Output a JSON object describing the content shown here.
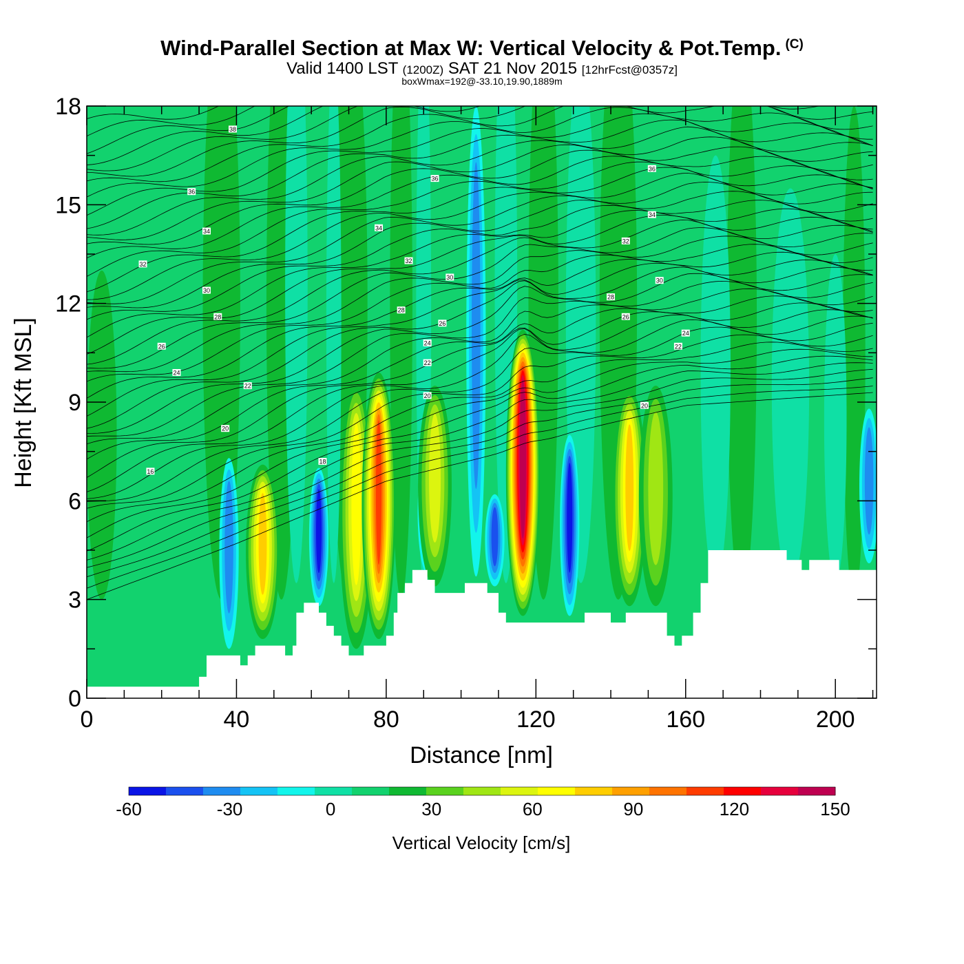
{
  "header": {
    "title_main": "Wind-Parallel Section at Max W: Vertical Velocity & Pot.Temp.",
    "title_mark": "(C)",
    "subtitle_a": "Valid 1400 LST",
    "subtitle_b": "(1200Z)",
    "subtitle_c": "SAT 21 Nov 2015",
    "subtitle_d": "[12hrFcst@0357z]",
    "subtitle_line3": "boxWmax=192@-33.10,19.90,1889m"
  },
  "chart_data": {
    "type": "heatmap",
    "xlabel": "Distance [nm]",
    "ylabel": "Height [Kft MSL]",
    "xlim": [
      0,
      211
    ],
    "ylim": [
      0,
      18
    ],
    "x_ticks": [
      0,
      40,
      80,
      120,
      160,
      200
    ],
    "y_ticks": [
      0,
      3,
      6,
      9,
      12,
      15,
      18
    ],
    "colorbar": {
      "label": "Vertical Velocity [cm/s]",
      "levels": [
        -60,
        -50,
        -40,
        -30,
        -20,
        -10,
        0,
        10,
        20,
        30,
        40,
        50,
        60,
        70,
        80,
        90,
        100,
        110,
        120,
        130,
        140,
        150
      ],
      "tick_labels": [
        "-60",
        "-30",
        "0",
        "30",
        "60",
        "90",
        "120",
        "150"
      ],
      "colors": [
        "#0a14e6",
        "#1a50ee",
        "#1e8cf0",
        "#14c3f5",
        "#12f5eb",
        "#0fe0a5",
        "#12d26e",
        "#0fb932",
        "#5ad21e",
        "#a0e614",
        "#dcf50f",
        "#ffff00",
        "#ffcd00",
        "#ffa000",
        "#ff7300",
        "#ff3c00",
        "#ff0000",
        "#e6003c",
        "#be0050"
      ]
    },
    "updraft_cores": [
      {
        "x": 47,
        "top": 7.1,
        "peak": 62
      },
      {
        "x": 72,
        "top": 9.6,
        "peak": 55
      },
      {
        "x": 78,
        "top": 9.9,
        "peak": 96
      },
      {
        "x": 93,
        "top": 9.5,
        "peak": 42
      },
      {
        "x": 116.5,
        "top": 11.2,
        "peak": 135
      },
      {
        "x": 145,
        "top": 9.4,
        "peak": 65
      },
      {
        "x": 152,
        "top": 9.5,
        "peak": 30
      }
    ],
    "downdraft_cores": [
      {
        "x": 62,
        "top": 7.0,
        "peak": -58
      },
      {
        "x": 109,
        "top": 6.2,
        "peak": -45
      },
      {
        "x": 129,
        "top": 8.0,
        "peak": -58
      },
      {
        "x": 38,
        "top": 7.3,
        "peak": -30
      },
      {
        "x": 91,
        "top": 7.5,
        "peak": -35
      },
      {
        "x": 104,
        "top": 18,
        "peak": -35
      },
      {
        "x": 209,
        "top": 8.8,
        "peak": -35
      }
    ],
    "terrain_profile": [
      [
        0,
        0.35
      ],
      [
        30,
        0.35
      ],
      [
        30,
        0.65
      ],
      [
        32,
        0.65
      ],
      [
        32,
        1.3
      ],
      [
        41,
        1.3
      ],
      [
        41,
        1.0
      ],
      [
        43,
        1.0
      ],
      [
        43,
        1.3
      ],
      [
        45,
        1.3
      ],
      [
        45,
        1.6
      ],
      [
        53,
        1.6
      ],
      [
        53,
        1.3
      ],
      [
        55,
        1.3
      ],
      [
        55,
        1.6
      ],
      [
        56,
        1.6
      ],
      [
        56,
        2.6
      ],
      [
        58,
        2.6
      ],
      [
        58,
        2.9
      ],
      [
        62,
        2.9
      ],
      [
        62,
        2.6
      ],
      [
        64,
        2.6
      ],
      [
        64,
        2.2
      ],
      [
        66,
        2.2
      ],
      [
        66,
        1.9
      ],
      [
        68,
        1.9
      ],
      [
        68,
        1.6
      ],
      [
        70,
        1.6
      ],
      [
        70,
        1.3
      ],
      [
        74,
        1.3
      ],
      [
        74,
        1.6
      ],
      [
        80,
        1.6
      ],
      [
        80,
        1.9
      ],
      [
        82,
        1.9
      ],
      [
        82,
        2.6
      ],
      [
        83,
        2.6
      ],
      [
        83,
        3.2
      ],
      [
        85,
        3.2
      ],
      [
        85,
        3.5
      ],
      [
        87,
        3.5
      ],
      [
        87,
        3.9
      ],
      [
        91,
        3.9
      ],
      [
        91,
        3.6
      ],
      [
        93,
        3.6
      ],
      [
        93,
        3.2
      ],
      [
        101,
        3.2
      ],
      [
        101,
        3.5
      ],
      [
        107,
        3.5
      ],
      [
        107,
        3.2
      ],
      [
        110,
        3.2
      ],
      [
        110,
        2.6
      ],
      [
        112,
        2.6
      ],
      [
        112,
        2.3
      ],
      [
        133,
        2.3
      ],
      [
        133,
        2.6
      ],
      [
        140,
        2.6
      ],
      [
        140,
        2.3
      ],
      [
        144,
        2.3
      ],
      [
        144,
        2.6
      ],
      [
        155,
        2.6
      ],
      [
        155,
        1.9
      ],
      [
        157,
        1.9
      ],
      [
        157,
        1.6
      ],
      [
        159,
        1.6
      ],
      [
        159,
        1.9
      ],
      [
        162,
        1.9
      ],
      [
        162,
        2.6
      ],
      [
        164,
        2.6
      ],
      [
        164,
        3.5
      ],
      [
        166,
        3.5
      ],
      [
        166,
        4.5
      ],
      [
        187,
        4.5
      ],
      [
        187,
        4.2
      ],
      [
        191,
        4.2
      ],
      [
        191,
        3.9
      ],
      [
        193,
        3.9
      ],
      [
        193,
        4.2
      ],
      [
        201,
        4.2
      ],
      [
        201,
        3.9
      ],
      [
        211,
        3.9
      ]
    ],
    "isentrope_labels": [
      {
        "text": "38",
        "x": 39,
        "y": 17.3
      },
      {
        "text": "36",
        "x": 28,
        "y": 15.4
      },
      {
        "text": "34",
        "x": 32,
        "y": 14.2
      },
      {
        "text": "32",
        "x": 15,
        "y": 13.2
      },
      {
        "text": "30",
        "x": 32,
        "y": 12.4
      },
      {
        "text": "28",
        "x": 35,
        "y": 11.6
      },
      {
        "text": "26",
        "x": 20,
        "y": 10.7
      },
      {
        "text": "24",
        "x": 24,
        "y": 9.9
      },
      {
        "text": "22",
        "x": 43,
        "y": 9.5
      },
      {
        "text": "20",
        "x": 37,
        "y": 8.2
      },
      {
        "text": "18",
        "x": 63,
        "y": 7.2
      },
      {
        "text": "16",
        "x": 17,
        "y": 6.9
      },
      {
        "text": "36",
        "x": 93,
        "y": 15.8
      },
      {
        "text": "34",
        "x": 78,
        "y": 14.3
      },
      {
        "text": "32",
        "x": 86,
        "y": 13.3
      },
      {
        "text": "30",
        "x": 97,
        "y": 12.8
      },
      {
        "text": "28",
        "x": 84,
        "y": 11.8
      },
      {
        "text": "26",
        "x": 95,
        "y": 11.4
      },
      {
        "text": "24",
        "x": 91,
        "y": 10.8
      },
      {
        "text": "22",
        "x": 91,
        "y": 10.2
      },
      {
        "text": "20",
        "x": 91,
        "y": 9.2
      },
      {
        "text": "36",
        "x": 151,
        "y": 16.1
      },
      {
        "text": "34",
        "x": 151,
        "y": 14.7
      },
      {
        "text": "32",
        "x": 144,
        "y": 13.9
      },
      {
        "text": "30",
        "x": 153,
        "y": 12.7
      },
      {
        "text": "28",
        "x": 140,
        "y": 12.2
      },
      {
        "text": "26",
        "x": 144,
        "y": 11.6
      },
      {
        "text": "24",
        "x": 160,
        "y": 11.1
      },
      {
        "text": "22",
        "x": 158,
        "y": 10.7
      },
      {
        "text": "20",
        "x": 149,
        "y": 8.9
      }
    ]
  }
}
